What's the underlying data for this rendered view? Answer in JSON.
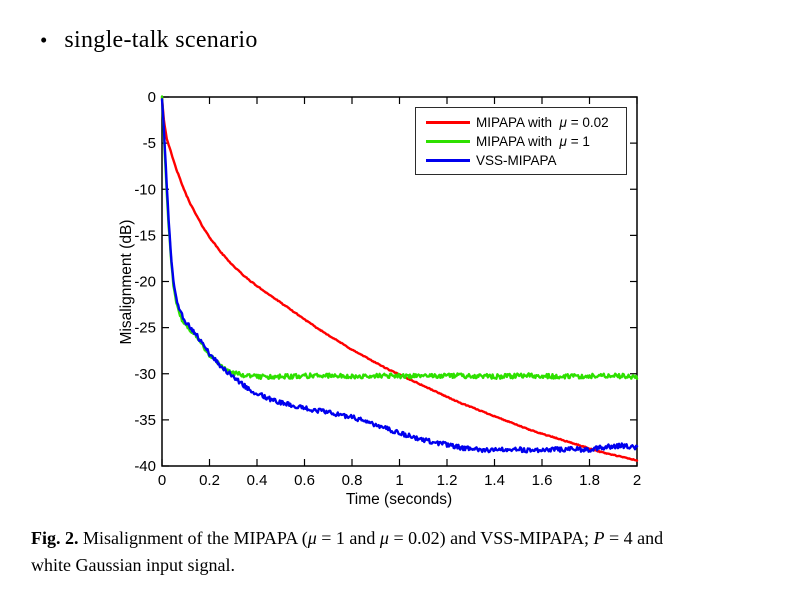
{
  "bullet": {
    "marker": "•",
    "text": "single-talk scenario"
  },
  "chart_data": {
    "type": "line",
    "title": "",
    "xlabel": "Time (seconds)",
    "ylabel": "Misalignment (dB)",
    "xlim": [
      0,
      2
    ],
    "ylim": [
      -40,
      0
    ],
    "grid": false,
    "legend_position": "upper right",
    "x_ticks": [
      0,
      0.2,
      0.4,
      0.6,
      0.8,
      1,
      1.2,
      1.4,
      1.6,
      1.8,
      2
    ],
    "x_tick_labels": [
      "0",
      "0.2",
      "0.4",
      "0.6",
      "0.8",
      "1",
      "1.2",
      "1.4",
      "1.6",
      "1.8",
      "2"
    ],
    "y_ticks": [
      0,
      -5,
      -10,
      -15,
      -20,
      -25,
      -30,
      -35,
      -40
    ],
    "y_tick_labels": [
      "0",
      "-5",
      "-10",
      "-15",
      "-20",
      "-25",
      "-30",
      "-35",
      "-40"
    ],
    "axis_color": "#000000",
    "series": [
      {
        "name": "MIPAPA with μ = 0.02",
        "name_parts": [
          {
            "t": "MIPAPA with  "
          },
          {
            "t": "μ",
            "i": true
          },
          {
            "t": " = 0.02"
          }
        ],
        "color": "#ff0000",
        "noise_db": 0.05,
        "points": [
          [
            0,
            0
          ],
          [
            0.008,
            -2.5
          ],
          [
            0.02,
            -4.5
          ],
          [
            0.04,
            -6.2
          ],
          [
            0.06,
            -7.8
          ],
          [
            0.08,
            -9.2
          ],
          [
            0.1,
            -10.5
          ],
          [
            0.12,
            -11.6
          ],
          [
            0.14,
            -12.6
          ],
          [
            0.17,
            -14.0
          ],
          [
            0.2,
            -15.2
          ],
          [
            0.25,
            -16.9
          ],
          [
            0.3,
            -18.3
          ],
          [
            0.35,
            -19.5
          ],
          [
            0.4,
            -20.5
          ],
          [
            0.45,
            -21.4
          ],
          [
            0.5,
            -22.3
          ],
          [
            0.55,
            -23.2
          ],
          [
            0.6,
            -24.1
          ],
          [
            0.65,
            -25.0
          ],
          [
            0.7,
            -25.8
          ],
          [
            0.75,
            -26.6
          ],
          [
            0.8,
            -27.4
          ],
          [
            0.85,
            -28.1
          ],
          [
            0.9,
            -28.8
          ],
          [
            0.95,
            -29.5
          ],
          [
            1.0,
            -30.1
          ],
          [
            1.05,
            -30.7
          ],
          [
            1.1,
            -31.3
          ],
          [
            1.15,
            -31.9
          ],
          [
            1.2,
            -32.5
          ],
          [
            1.25,
            -33.1
          ],
          [
            1.3,
            -33.6
          ],
          [
            1.35,
            -34.1
          ],
          [
            1.4,
            -34.6
          ],
          [
            1.45,
            -35.1
          ],
          [
            1.5,
            -35.6
          ],
          [
            1.55,
            -36.1
          ],
          [
            1.6,
            -36.5
          ],
          [
            1.65,
            -36.9
          ],
          [
            1.7,
            -37.3
          ],
          [
            1.75,
            -37.7
          ],
          [
            1.8,
            -38.1
          ],
          [
            1.85,
            -38.5
          ],
          [
            1.9,
            -38.8
          ],
          [
            1.95,
            -39.1
          ],
          [
            2.0,
            -39.4
          ]
        ]
      },
      {
        "name": "MIPAPA with μ = 1",
        "name_parts": [
          {
            "t": "MIPAPA with  "
          },
          {
            "t": "μ",
            "i": true
          },
          {
            "t": " = 1"
          }
        ],
        "color": "#2ee000",
        "noise_db": 0.25,
        "points": [
          [
            0,
            0
          ],
          [
            0.005,
            -2.5
          ],
          [
            0.01,
            -5
          ],
          [
            0.02,
            -10.5
          ],
          [
            0.03,
            -14.8
          ],
          [
            0.04,
            -18
          ],
          [
            0.05,
            -20.8
          ],
          [
            0.06,
            -22.3
          ],
          [
            0.07,
            -23.3
          ],
          [
            0.09,
            -24.4
          ],
          [
            0.11,
            -25.0
          ],
          [
            0.13,
            -25.5
          ],
          [
            0.16,
            -26.6
          ],
          [
            0.19,
            -27.7
          ],
          [
            0.22,
            -28.5
          ],
          [
            0.25,
            -29.2
          ],
          [
            0.28,
            -29.7
          ],
          [
            0.31,
            -30.0
          ],
          [
            0.35,
            -30.2
          ],
          [
            0.4,
            -30.3
          ],
          [
            0.5,
            -30.3
          ],
          [
            0.65,
            -30.2
          ],
          [
            0.8,
            -30.3
          ],
          [
            0.95,
            -30.2
          ],
          [
            1.1,
            -30.3
          ],
          [
            1.25,
            -30.2
          ],
          [
            1.4,
            -30.3
          ],
          [
            1.55,
            -30.2
          ],
          [
            1.7,
            -30.3
          ],
          [
            1.85,
            -30.2
          ],
          [
            2.0,
            -30.3
          ]
        ]
      },
      {
        "name": "VSS-MIPAPA",
        "name_parts": [
          {
            "t": "VSS-MIPAPA"
          }
        ],
        "color": "#0000ee",
        "noise_db": 0.25,
        "points": [
          [
            0,
            0
          ],
          [
            0.005,
            -2
          ],
          [
            0.01,
            -4.5
          ],
          [
            0.02,
            -9.5
          ],
          [
            0.03,
            -14.3
          ],
          [
            0.04,
            -17.8
          ],
          [
            0.05,
            -20.4
          ],
          [
            0.06,
            -21.9
          ],
          [
            0.07,
            -22.8
          ],
          [
            0.08,
            -23.5
          ],
          [
            0.1,
            -24.4
          ],
          [
            0.12,
            -25.0
          ],
          [
            0.14,
            -25.6
          ],
          [
            0.17,
            -26.7
          ],
          [
            0.2,
            -27.8
          ],
          [
            0.22,
            -28.4
          ],
          [
            0.25,
            -29.2
          ],
          [
            0.28,
            -29.9
          ],
          [
            0.31,
            -30.6
          ],
          [
            0.35,
            -31.4
          ],
          [
            0.39,
            -32.0
          ],
          [
            0.43,
            -32.5
          ],
          [
            0.47,
            -32.9
          ],
          [
            0.51,
            -33.2
          ],
          [
            0.56,
            -33.5
          ],
          [
            0.61,
            -33.8
          ],
          [
            0.66,
            -34.0
          ],
          [
            0.72,
            -34.3
          ],
          [
            0.78,
            -34.6
          ],
          [
            0.84,
            -35.0
          ],
          [
            0.9,
            -35.6
          ],
          [
            0.96,
            -36.1
          ],
          [
            1.02,
            -36.6
          ],
          [
            1.08,
            -37.0
          ],
          [
            1.14,
            -37.4
          ],
          [
            1.2,
            -37.7
          ],
          [
            1.26,
            -38.0
          ],
          [
            1.32,
            -38.2
          ],
          [
            1.4,
            -38.3
          ],
          [
            1.48,
            -38.2
          ],
          [
            1.56,
            -38.3
          ],
          [
            1.64,
            -38.2
          ],
          [
            1.72,
            -38.2
          ],
          [
            1.8,
            -38.2
          ],
          [
            1.88,
            -37.9
          ],
          [
            1.94,
            -37.8
          ],
          [
            2.0,
            -38.0
          ]
        ]
      }
    ]
  },
  "caption": {
    "parts": [
      {
        "t": "Fig. 2.",
        "b": true
      },
      {
        "t": " Misalignment of the MIPAPA ("
      },
      {
        "t": "μ",
        "i": true
      },
      {
        "t": " = 1 and "
      },
      {
        "t": "μ",
        "i": true
      },
      {
        "t": " = 0.02) and VSS-MIPAPA; "
      },
      {
        "t": "P",
        "i": true
      },
      {
        "t": " = 4 and"
      },
      {
        "br": true
      },
      {
        "t": "white Gaussian input signal."
      }
    ]
  }
}
